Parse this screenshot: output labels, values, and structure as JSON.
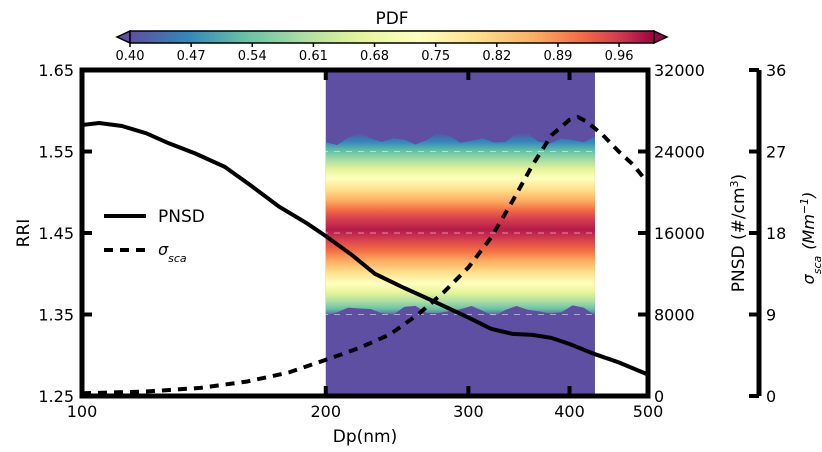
{
  "chart_data": {
    "type": "line",
    "colorbar": {
      "title": "PDF",
      "ticks": [
        "0.40",
        "0.47",
        "0.54",
        "0.61",
        "0.68",
        "0.75",
        "0.82",
        "0.89",
        "0.96"
      ],
      "range": [
        0.4,
        1.0
      ]
    },
    "xaxis": {
      "label": "Dp(nm)",
      "scale": "log",
      "range": [
        100,
        500
      ],
      "ticks": [
        100,
        200,
        300,
        400,
        500
      ],
      "tick_labels": [
        "100",
        "200",
        "300",
        "400",
        "500"
      ]
    },
    "yaxis_left": {
      "label": "RRI",
      "range": [
        1.25,
        1.65
      ],
      "ticks": [
        "1.25",
        "1.35",
        "1.45",
        "1.55",
        "1.65"
      ],
      "grid": true
    },
    "yaxis_right1": {
      "label": "PNSD (#/cm",
      "label_sup": "3",
      "label_end": ")",
      "range": [
        0,
        32000
      ],
      "ticks": [
        "0",
        "8000",
        "16000",
        "24000",
        "32000"
      ]
    },
    "yaxis_right2": {
      "label": "σ",
      "label_sub": "sca",
      "label_units": "(Mm",
      "label_units_sup": "−1",
      "label_units_end": ")",
      "range": [
        0,
        36
      ],
      "ticks": [
        "0",
        "9",
        "18",
        "27",
        "36"
      ]
    },
    "heatmap": {
      "x_range": [
        200,
        430
      ],
      "background_value": 0.4,
      "description_band_center_rri": 1.455
    },
    "legend": {
      "position": "center-left",
      "entries": [
        {
          "label": "PNSD",
          "style": "solid"
        },
        {
          "label": "σ",
          "sub": "sca",
          "style": "dashed"
        }
      ]
    },
    "series": [
      {
        "name": "PNSD",
        "axis": "PNSD",
        "x": [
          100,
          105,
          112,
          120,
          128,
          138,
          150,
          162,
          175,
          190,
          200,
          215,
          230,
          250,
          270,
          300,
          320,
          340,
          360,
          380,
          400,
          430,
          460,
          490,
          500
        ],
        "y": [
          26600,
          26800,
          26500,
          25800,
          24800,
          23800,
          22500,
          20600,
          18600,
          16900,
          15700,
          13900,
          12000,
          10600,
          9400,
          7700,
          6600,
          6100,
          6000,
          5700,
          5100,
          4100,
          3300,
          2400,
          2100
        ]
      },
      {
        "name": "σsca",
        "axis": "sigma",
        "x": [
          100,
          120,
          140,
          160,
          180,
          200,
          220,
          240,
          260,
          280,
          300,
          320,
          340,
          360,
          380,
          400,
          410,
          420,
          440,
          460,
          480,
          500
        ],
        "y": [
          0.3,
          0.5,
          0.9,
          1.6,
          2.6,
          4.0,
          5.3,
          6.8,
          9.0,
          11.5,
          14.2,
          17.5,
          21.5,
          25.5,
          28.8,
          30.5,
          30.8,
          30.3,
          28.8,
          27.0,
          25.5,
          23.5
        ]
      }
    ]
  }
}
